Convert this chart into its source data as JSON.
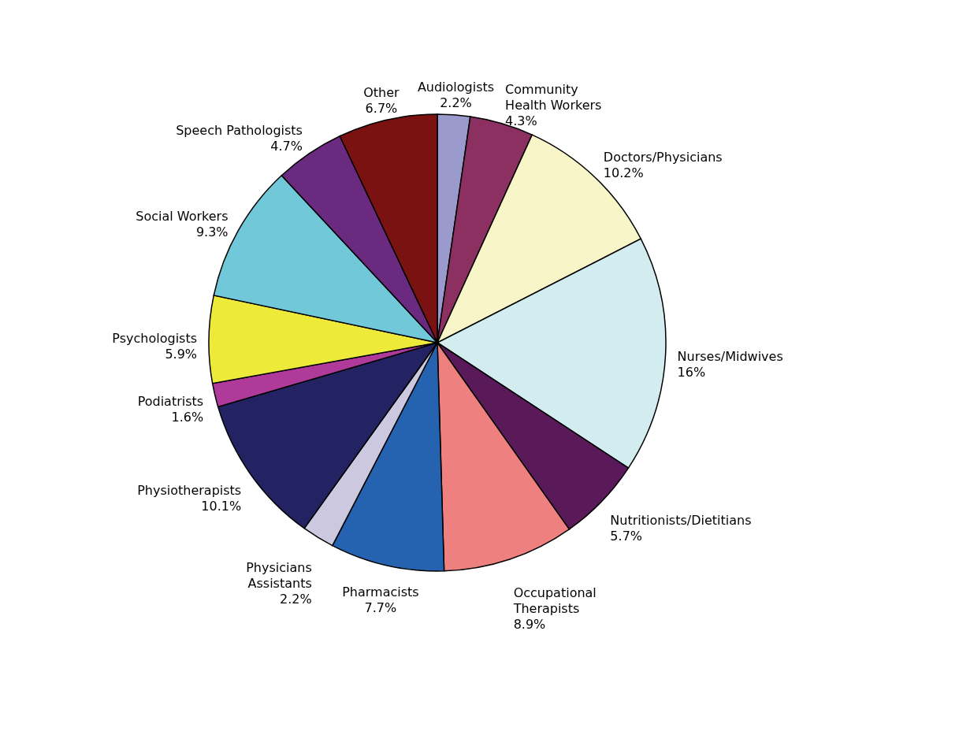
{
  "chart_data": {
    "type": "pie",
    "categories": [
      "Audiologists",
      "Community Health Workers",
      "Doctors/Physicians",
      "Nurses/Midwives",
      "Nutritionists/Dietitians",
      "Occupational Therapists",
      "Pharmacists",
      "Physicians Assistants",
      "Physiotherapists",
      "Podiatrists",
      "Psychologists",
      "Social Workers",
      "Speech Pathologists",
      "Other"
    ],
    "values": [
      2.2,
      4.3,
      10.2,
      16,
      5.7,
      8.9,
      7.7,
      2.2,
      10.1,
      1.6,
      5.9,
      9.3,
      4.7,
      6.7
    ],
    "value_labels": [
      "2.2%",
      "4.3%",
      "10.2%",
      "16%",
      "5.7%",
      "8.9%",
      "7.7%",
      "2.2%",
      "10.1%",
      "1.6%",
      "5.9%",
      "9.3%",
      "4.7%",
      "6.7%"
    ],
    "colors": [
      "#9a9acc",
      "#8b3060",
      "#f8f6c8",
      "#d3ecf0",
      "#5a1a5a",
      "#ee8080",
      "#2563b0",
      "#ccc8e0",
      "#232363",
      "#b03a9a",
      "#eeea3a",
      "#70c8d8",
      "#6a2a80",
      "#7a1212"
    ]
  }
}
